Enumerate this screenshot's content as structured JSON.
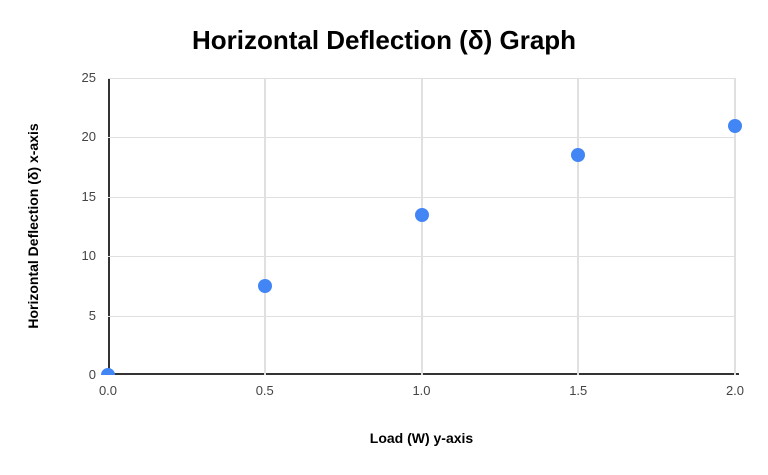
{
  "chart_data": {
    "type": "scatter",
    "title": "Horizontal Deflection (δ) Graph",
    "xlabel": "Load (W) y-axis",
    "ylabel": "Horizontal Deflection (δ) x-axis",
    "points": [
      {
        "x": 0.0,
        "y": 0
      },
      {
        "x": 0.5,
        "y": 7.5
      },
      {
        "x": 1.0,
        "y": 13.5
      },
      {
        "x": 1.5,
        "y": 18.5
      },
      {
        "x": 2.0,
        "y": 21
      }
    ],
    "x_ticks": [
      "0.0",
      "0.5",
      "1.0",
      "1.5",
      "2.0"
    ],
    "x_tick_values": [
      0,
      0.5,
      1.0,
      1.5,
      2.0
    ],
    "y_ticks": [
      "0",
      "5",
      "10",
      "15",
      "20",
      "25"
    ],
    "y_tick_values": [
      0,
      5,
      10,
      15,
      20,
      25
    ],
    "xlim": [
      0,
      2
    ],
    "ylim": [
      0,
      25
    ],
    "grid": true,
    "legend": "none",
    "colors": {
      "point": "#4285f4",
      "axis_line": "#333333",
      "gridline": "#e0e0e0",
      "tick_text": "#444444",
      "title_text": "#000000",
      "background": "#ffffff"
    }
  }
}
